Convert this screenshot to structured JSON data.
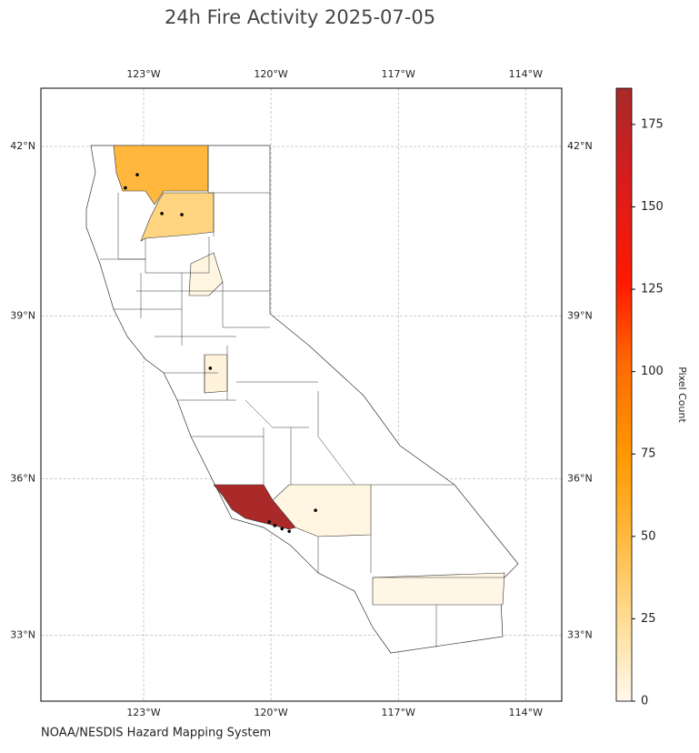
{
  "map": {
    "title": "24h Fire Activity 2025-07-05",
    "credit": "NOAA/NESDIS Hazard Mapping System",
    "xlim": [
      -125.42,
      -113.15
    ],
    "ylim": [
      31.7,
      43.0
    ],
    "xticks": [
      {
        "value": -123,
        "label": "123°W"
      },
      {
        "value": -120,
        "label": "120°W"
      },
      {
        "value": -117,
        "label": "117°W"
      },
      {
        "value": -114,
        "label": "114°W"
      }
    ],
    "yticks": [
      {
        "value": 42,
        "label": "42°N"
      },
      {
        "value": 39,
        "label": "39°N"
      },
      {
        "value": 36,
        "label": "36°N"
      },
      {
        "value": 33,
        "label": "33°N"
      }
    ],
    "grid": true,
    "region_values": [
      50,
      30,
      185,
      3,
      3,
      5,
      2
    ],
    "fire_points": {
      "lon": [
        -123.15,
        -123.43,
        -122.1,
        -122.57,
        -121.43,
        -120.04,
        -119.91,
        -119.74,
        -119.57,
        -118.95
      ],
      "lat": [
        41.51,
        41.28,
        40.81,
        40.83,
        38.05,
        35.18,
        35.11,
        35.05,
        35.0,
        35.4
      ]
    },
    "colorbar": {
      "label": "Pixel Count",
      "lim": [
        0,
        186
      ],
      "ticks": [
        0,
        25,
        50,
        75,
        100,
        125,
        150,
        175
      ]
    }
  }
}
